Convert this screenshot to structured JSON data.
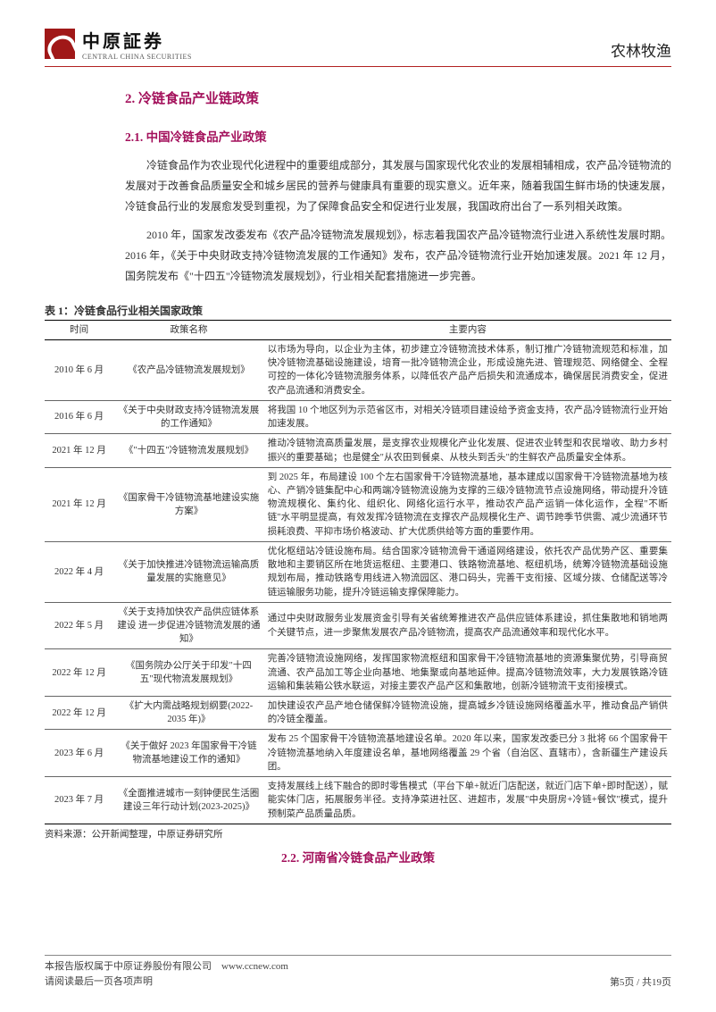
{
  "header": {
    "logo_cn": "中原証券",
    "logo_en": "CENTRAL CHINA SECURITIES",
    "right": "农林牧渔"
  },
  "sections": {
    "h2": "2. 冷链食品产业链政策",
    "h3_1": "2.1. 中国冷链食品产业政策",
    "p1": "冷链食品作为农业现代化进程中的重要组成部分，其发展与国家现代化农业的发展相辅相成，农产品冷链物流的发展对于改善食品质量安全和城乡居民的营养与健康具有重要的现实意义。近年来，随着我国生鲜市场的快速发展，冷链食品行业的发展愈发受到重视，为了保障食品安全和促进行业发展，我国政府出台了一系列相关政策。",
    "p2": "2010 年，国家发改委发布《农产品冷链物流发展规划》，标志着我国农产品冷链物流行业进入系统性发展时期。2016 年，《关于中央财政支持冷链物流发展的工作通知》发布，农产品冷链物流行业开始加速发展。2021 年 12 月，国务院发布《\"十四五\"冷链物流发展规划》，行业相关配套措施进一步完善。",
    "h3_2": "2.2. 河南省冷链食品产业政策"
  },
  "table": {
    "title": "表 1：冷链食品行业相关国家政策",
    "source": "资料来源：公开新闻整理，中原证券研究所",
    "headers": {
      "time": "时间",
      "name": "政策名称",
      "content": "主要内容"
    },
    "rows": [
      {
        "time": "2010 年 6 月",
        "name": "《农产品冷链物流发展规划》",
        "content": "以市场为导向，以企业为主体，初步建立冷链物流技术体系，制订推广冷链物流规范和标准，加快冷链物流基础设施建设，培育一批冷链物流企业，形成设施先进、管理规范、网络健全、全程可控的一体化冷链物流服务体系，以降低农产品产后损失和流通成本，确保居民消费安全，促进农产品流通和消费安全。"
      },
      {
        "time": "2016 年 6 月",
        "name": "《关于中央财政支持冷链物流发展的工作通知》",
        "content": "将我国 10 个地区列为示范省区市，对相关冷链项目建设给予资金支持，农产品冷链物流行业开始加速发展。"
      },
      {
        "time": "2021 年 12 月",
        "name": "《\"十四五\"冷链物流发展规划》",
        "content": "推动冷链物流高质量发展，是支撑农业规模化产业化发展、促进农业转型和农民增收、助力乡村振兴的重要基础；也是健全\"从农田到餐桌、从枝头到舌头\"的生鲜农产品质量安全体系。"
      },
      {
        "time": "2021 年 12 月",
        "name": "《国家骨干冷链物流基地建设实施方案》",
        "content": "到 2025 年，布局建设 100 个左右国家骨干冷链物流基地，基本建成以国家骨干冷链物流基地为核心、产销冷链集配中心和两端冷链物流设施为支撑的三级冷链物流节点设施网络，带动提升冷链物流规模化、集约化、组织化、网络化运行水平，推动农产品产运销一体化运作，全程\"不断链\"水平明显提高，有效发挥冷链物流在支撑农产品规模化生产、调节跨季节供需、减少流通环节损耗浪费、平抑市场价格波动、扩大优质供给等方面的重要作用。"
      },
      {
        "time": "2022 年 4 月",
        "name": "《关于加快推进冷链物流运输高质量发展的实施意见》",
        "content": "优化枢纽站冷链设施布局。结合国家冷链物流骨干通道网络建设，依托农产品优势产区、重要集散地和主要销区所在地货运枢纽、主要港口、铁路物流基地、枢纽机场，统筹冷链物流基础设施规划布局，推动铁路专用线进入物流园区、港口码头，完善干支衔接、区域分拨、仓储配送等冷链运输服务功能，提升冷链运输支撑保障能力。"
      },
      {
        "time": "2022 年 5 月",
        "name": "《关于支持加快农产品供应链体系建设 进一步促进冷链物流发展的通知》",
        "content": "通过中央财政服务业发展资金引导有关省统筹推进农产品供应链体系建设，抓住集散地和销地两个关键节点，进一步聚焦发展农产品冷链物流，提高农产品流通效率和现代化水平。"
      },
      {
        "time": "2022 年 12 月",
        "name": "《国务院办公厅关于印发\"十四五\"现代物流发展规划》",
        "content": "完善冷链物流设施网络，发挥国家物流枢纽和国家骨干冷链物流基地的资源集聚优势，引导商贸流通、农产品加工等企业向基地、地集聚或向基地延伸。提高冷链物流效率，大力发展铁路冷链运输和集装箱公铁水联运，对接主要农产品产区和集散地，创新冷链物流干支衔接模式。"
      },
      {
        "time": "2022 年 12 月",
        "name": "《扩大内需战略规划纲要(2022-2035 年)》",
        "content": "加快建设农产品产地仓储保鲜冷链物流设施，提高城乡冷链设施网络覆盖水平，推动食品产销供的冷链全覆盖。"
      },
      {
        "time": "2023 年 6 月",
        "name": "《关于做好 2023 年国家骨干冷链物流基地建设工作的通知》",
        "content": "发布 25 个国家骨干冷链物流基地建设名单。2020 年以来，国家发改委已分 3 批将 66 个国家骨干冷链物流基地纳入年度建设名单，基地网络覆盖 29 个省（自治区、直辖市），含新疆生产建设兵团。"
      },
      {
        "time": "2023 年 7 月",
        "name": "《全面推进城市一刻钟便民生活圈建设三年行动计划(2023-2025)》",
        "content": "支持发展线上线下融合的即时零售模式（平台下单+就近门店配送，就近门店下单+即时配送），赋能实体门店，拓展服务半径。支持净菜进社区、进超市，发展\"中央厨房+冷链+餐饮\"模式，提升预制菜产品质量品质。"
      }
    ]
  },
  "footer": {
    "line1": "本报告版权属于中原证券股份有限公司　www.ccnew.com",
    "line2": "请阅读最后一页各项声明",
    "page": "第5页 / 共19页"
  },
  "colors": {
    "accent_red": "#a01818",
    "heading_magenta": "#a3105b",
    "rule_red": "#b22222",
    "text": "#333333"
  }
}
